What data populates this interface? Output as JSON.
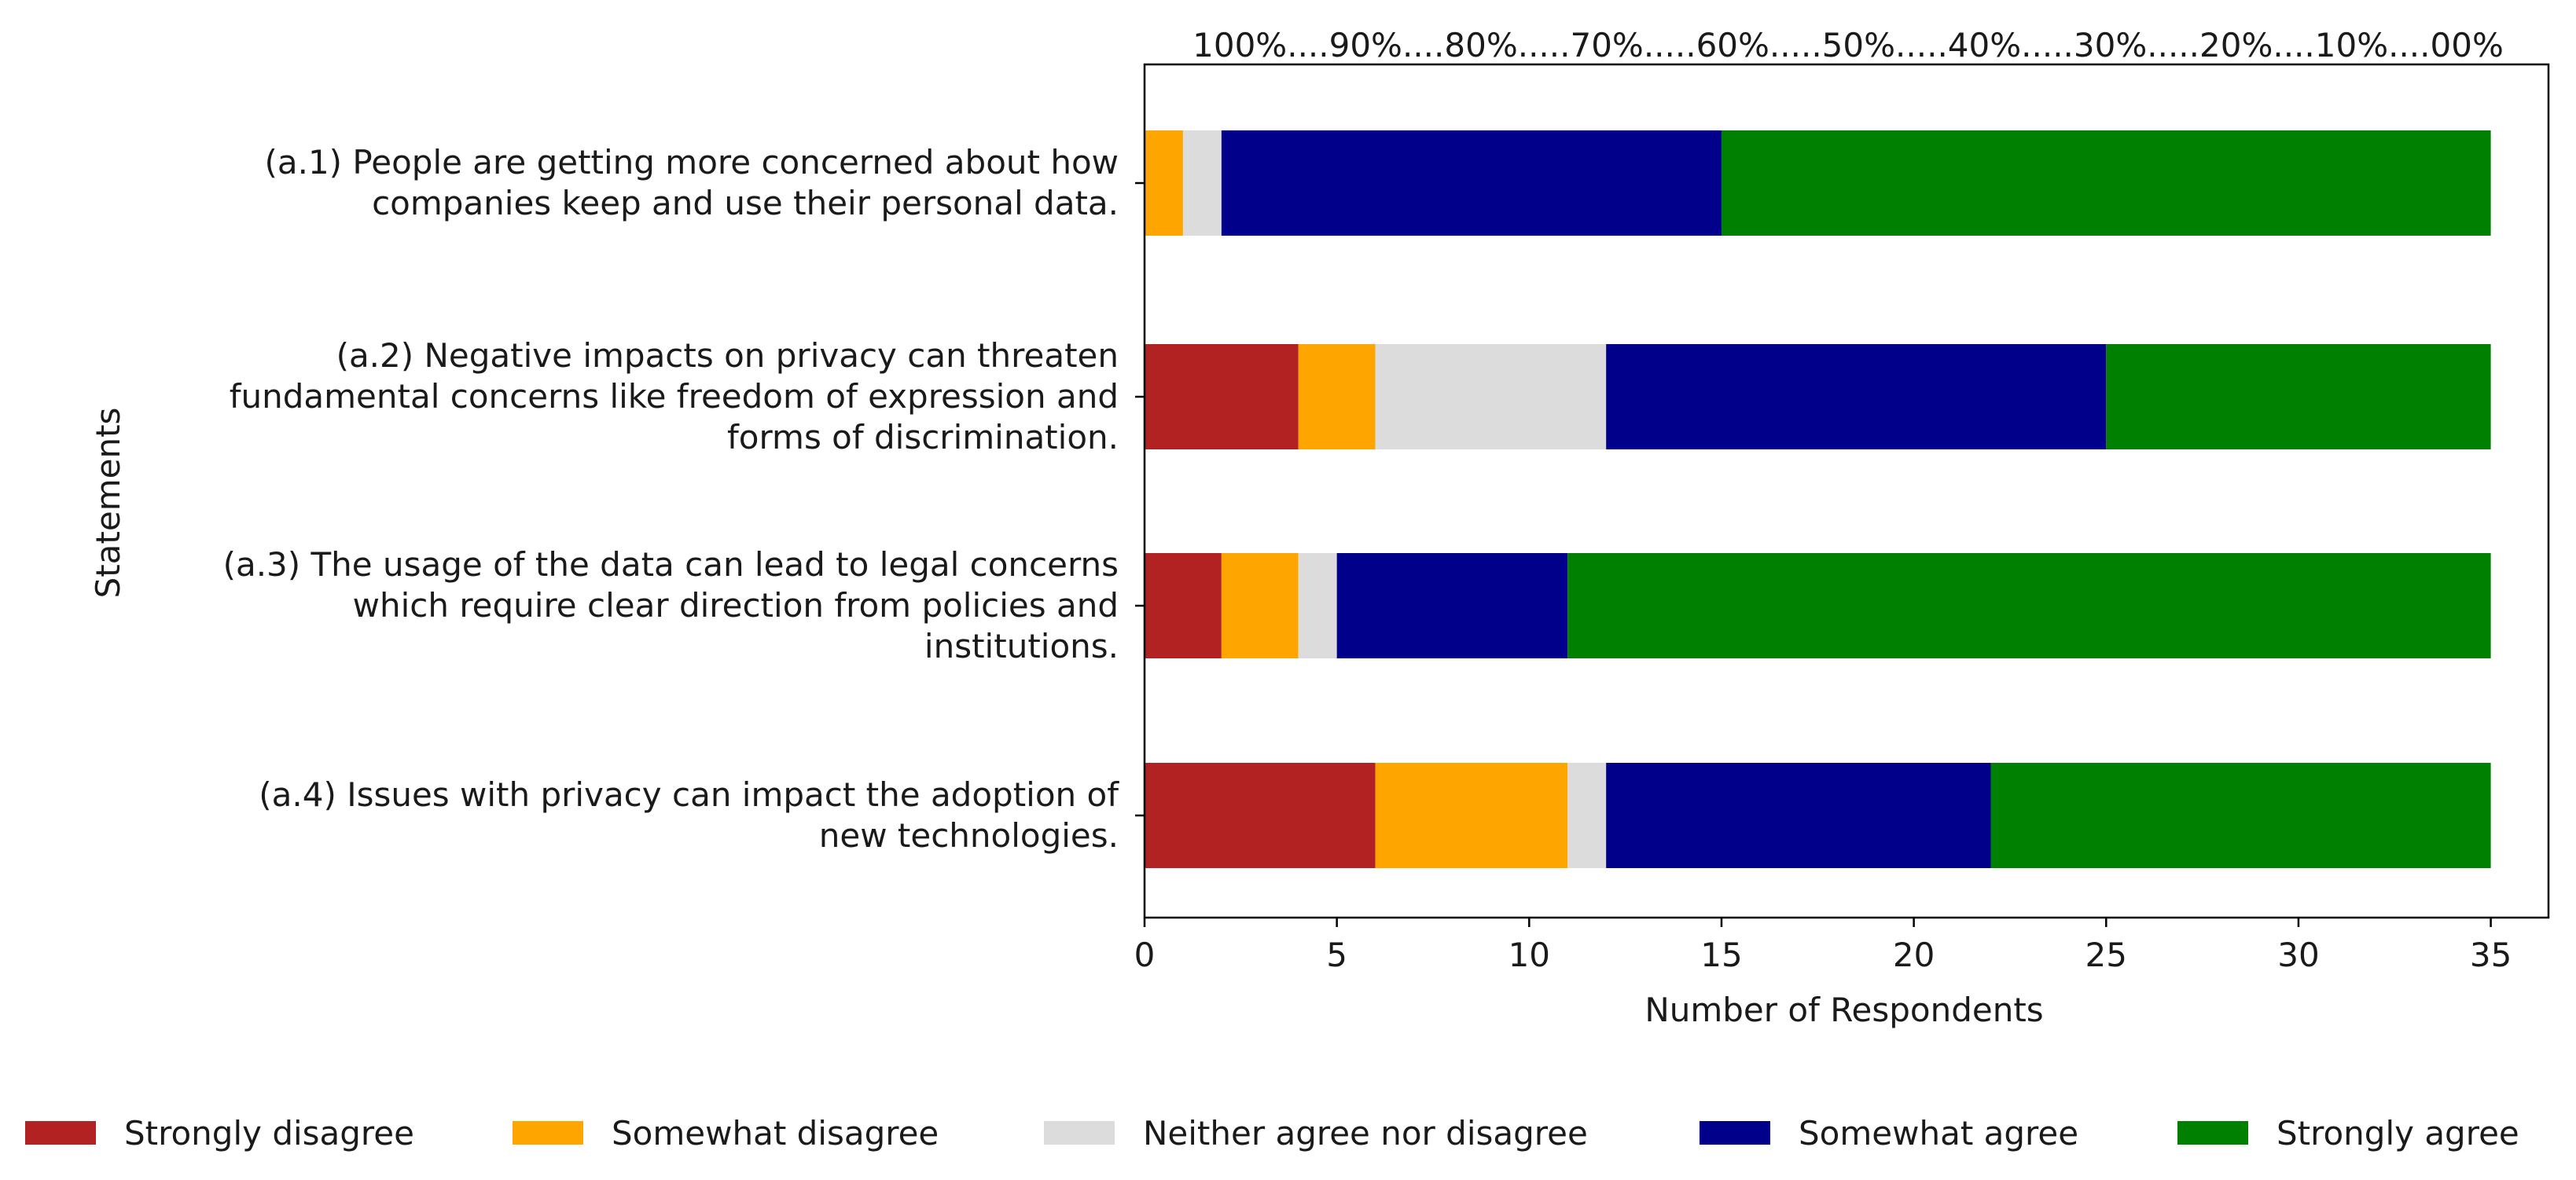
{
  "chart_data": {
    "type": "bar",
    "orientation": "horizontal",
    "stacked": true,
    "title": "",
    "xlabel": "Number of Respondents",
    "ylabel": "Statements",
    "xlim": [
      0,
      36.5
    ],
    "xticks": [
      0,
      5,
      10,
      15,
      20,
      25,
      30,
      35
    ],
    "grid": false,
    "top_scale_label": "100%....90%....80%.....70%.....60%.....50%.....40%.....30%.....20%....10%....00%",
    "legend_position": "bottom",
    "categories": [
      [
        "(a.1) People are getting more concerned about how",
        "companies keep and use their personal data."
      ],
      [
        "(a.2) Negative impacts on privacy can threaten",
        "fundamental concerns like freedom of expression and",
        "forms of discrimination."
      ],
      [
        "(a.3) The usage of the data can lead to legal concerns",
        "which require clear direction from policies and",
        "institutions."
      ],
      [
        "(a.4) Issues with privacy can impact the adoption of",
        "new technologies."
      ]
    ],
    "series": [
      {
        "name": "Strongly disagree",
        "color": "#b22222",
        "values": [
          0,
          4,
          2,
          6
        ]
      },
      {
        "name": "Somewhat disagree",
        "color": "#ffa500",
        "values": [
          1,
          2,
          2,
          5
        ]
      },
      {
        "name": "Neither agree nor disagree",
        "color": "#dcdcdc",
        "values": [
          1,
          6,
          1,
          1
        ]
      },
      {
        "name": "Somewhat agree",
        "color": "#00008b",
        "values": [
          13,
          13,
          6,
          10
        ]
      },
      {
        "name": "Strongly agree",
        "color": "#008000",
        "values": [
          20,
          10,
          24,
          13
        ]
      }
    ]
  }
}
